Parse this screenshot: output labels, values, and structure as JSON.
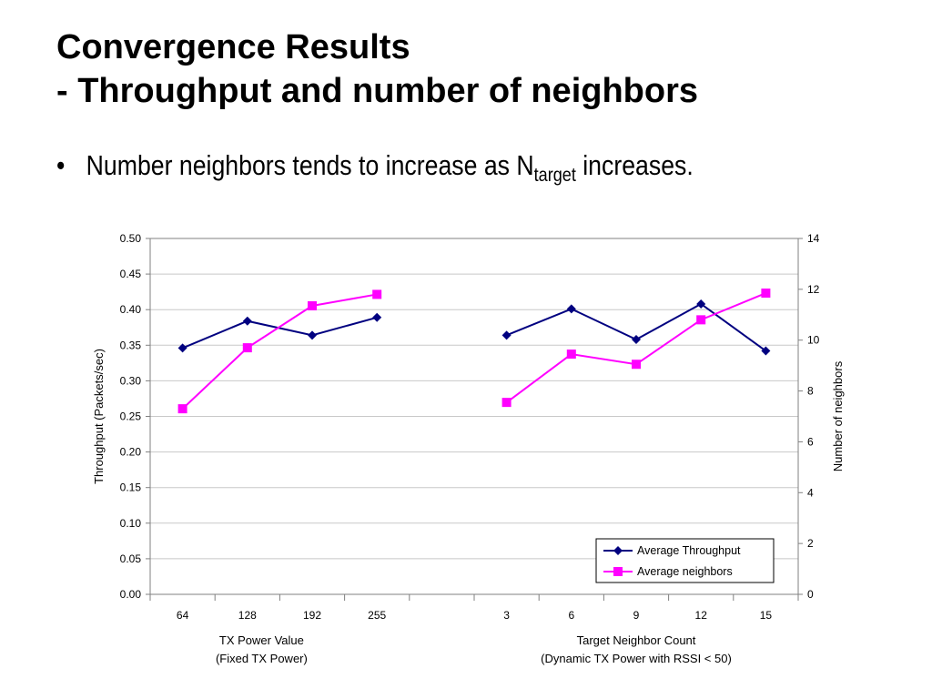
{
  "slide": {
    "title_line1": "Convergence Results",
    "title_line2": "- Throughput and number of neighbors",
    "bullet_marker": "•",
    "bullet_text_before": "Number neighbors tends to increase as N",
    "bullet_subscript": "target",
    "bullet_text_after": " increases."
  },
  "chart_data": {
    "type": "line",
    "ylabel": "Throughput (Packets/sec)",
    "y2label": "Number of neighbors",
    "ylim": [
      0,
      0.5
    ],
    "y2lim": [
      0,
      14
    ],
    "yticks": [
      "0.00",
      "0.05",
      "0.10",
      "0.15",
      "0.20",
      "0.25",
      "0.30",
      "0.35",
      "0.40",
      "0.45",
      "0.50"
    ],
    "y2ticks": [
      "0",
      "2",
      "4",
      "6",
      "8",
      "10",
      "12",
      "14"
    ],
    "grid": true,
    "legend_position": "bottom-right",
    "categories": [
      "64",
      "128",
      "192",
      "255",
      "",
      "3",
      "6",
      "9",
      "12",
      "15"
    ],
    "group_labels": [
      {
        "line1": "TX Power Value",
        "line2": "(Fixed TX Power)"
      },
      {
        "line1": "Target Neighbor Count",
        "line2": "(Dynamic TX Power with RSSI < 50)"
      }
    ],
    "series": [
      {
        "name": "Average Throughput",
        "axis": "left",
        "color": "#000080",
        "marker": "diamond",
        "values": [
          0.346,
          0.384,
          0.364,
          0.389,
          null,
          0.364,
          0.401,
          0.358,
          0.408,
          0.342
        ]
      },
      {
        "name": "Average neighbors",
        "axis": "right",
        "color": "#ff00ff",
        "marker": "square",
        "values": [
          7.3,
          9.7,
          11.35,
          11.8,
          null,
          7.55,
          9.45,
          9.05,
          10.8,
          11.85
        ]
      }
    ]
  }
}
